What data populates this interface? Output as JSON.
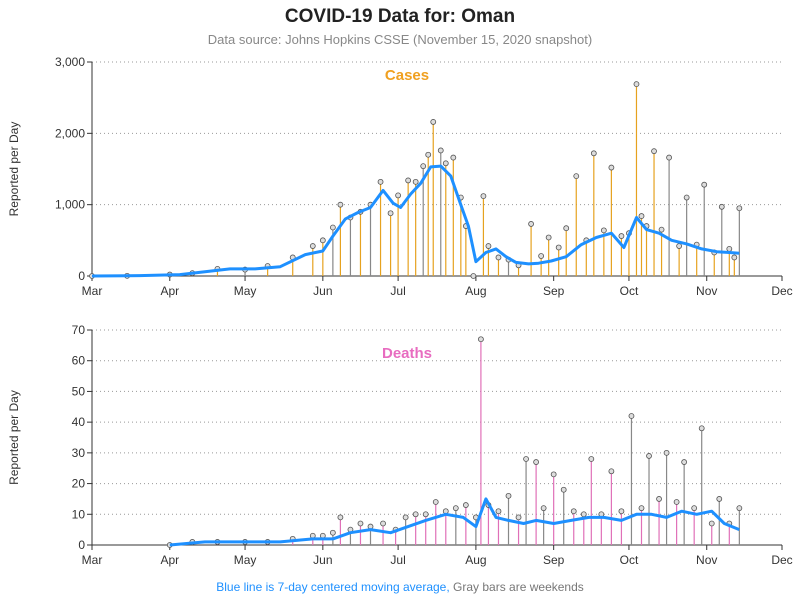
{
  "page": {
    "title": "COVID-19 Data for: Oman",
    "subtitle": "Data source: Johns Hopkins CSSE (November 15, 2020 snapshot)",
    "footer_blue": "Blue line is 7-day centered moving average,",
    "footer_gray": "Gray bars are weekends"
  },
  "colors": {
    "cases_bar": "#e6a21f",
    "deaths_bar": "#e070b8",
    "weekend_bar": "#888888",
    "moving_avg": "#1e90ff",
    "cases_title": "#f0a020",
    "deaths_title": "#e86cc0"
  },
  "chart_data": [
    {
      "type": "bar",
      "title": "Cases",
      "ylabel": "Reported per Day",
      "xlabel": "",
      "ylim": [
        0,
        3000
      ],
      "yticks": [
        "0",
        "1,000",
        "2,000",
        "3,000"
      ],
      "yticks_values": [
        0,
        1000,
        2000,
        3000
      ],
      "xticks": [
        "Mar",
        "Apr",
        "May",
        "Jun",
        "Jul",
        "Aug",
        "Sep",
        "Oct",
        "Nov",
        "Dec"
      ],
      "grid": "horizontal dotted",
      "series": [
        {
          "name": "Daily cases",
          "points": [
            [
              "2020-03-01",
              0
            ],
            [
              "2020-03-15",
              2
            ],
            [
              "2020-04-01",
              20
            ],
            [
              "2020-04-10",
              40
            ],
            [
              "2020-04-20",
              100
            ],
            [
              "2020-05-01",
              90
            ],
            [
              "2020-05-10",
              140
            ],
            [
              "2020-05-20",
              260
            ],
            [
              "2020-05-28",
              420
            ],
            [
              "2020-06-01",
              500
            ],
            [
              "2020-06-05",
              680
            ],
            [
              "2020-06-08",
              1000
            ],
            [
              "2020-06-12",
              820
            ],
            [
              "2020-06-16",
              900
            ],
            [
              "2020-06-20",
              1000
            ],
            [
              "2020-06-24",
              1320
            ],
            [
              "2020-06-28",
              880
            ],
            [
              "2020-07-01",
              1130
            ],
            [
              "2020-07-05",
              1340
            ],
            [
              "2020-07-08",
              1320
            ],
            [
              "2020-07-11",
              1540
            ],
            [
              "2020-07-13",
              1700
            ],
            [
              "2020-07-15",
              2160
            ],
            [
              "2020-07-18",
              1760
            ],
            [
              "2020-07-20",
              1580
            ],
            [
              "2020-07-23",
              1660
            ],
            [
              "2020-07-26",
              1100
            ],
            [
              "2020-07-28",
              700
            ],
            [
              "2020-07-31",
              0
            ],
            [
              "2020-08-04",
              1120
            ],
            [
              "2020-08-06",
              420
            ],
            [
              "2020-08-10",
              260
            ],
            [
              "2020-08-14",
              230
            ],
            [
              "2020-08-18",
              150
            ],
            [
              "2020-08-23",
              730
            ],
            [
              "2020-08-27",
              280
            ],
            [
              "2020-08-30",
              540
            ],
            [
              "2020-09-03",
              400
            ],
            [
              "2020-09-06",
              670
            ],
            [
              "2020-09-10",
              1400
            ],
            [
              "2020-09-14",
              500
            ],
            [
              "2020-09-17",
              1720
            ],
            [
              "2020-09-21",
              640
            ],
            [
              "2020-09-24",
              1520
            ],
            [
              "2020-09-28",
              560
            ],
            [
              "2020-10-01",
              600
            ],
            [
              "2020-10-04",
              2690
            ],
            [
              "2020-10-06",
              840
            ],
            [
              "2020-10-08",
              700
            ],
            [
              "2020-10-11",
              1750
            ],
            [
              "2020-10-14",
              650
            ],
            [
              "2020-10-17",
              1660
            ],
            [
              "2020-10-21",
              420
            ],
            [
              "2020-10-24",
              1100
            ],
            [
              "2020-10-28",
              440
            ],
            [
              "2020-10-31",
              1280
            ],
            [
              "2020-11-04",
              330
            ],
            [
              "2020-11-07",
              970
            ],
            [
              "2020-11-10",
              380
            ],
            [
              "2020-11-12",
              260
            ],
            [
              "2020-11-14",
              950
            ]
          ]
        },
        {
          "name": "7-day moving average",
          "points": [
            [
              "2020-03-01",
              0
            ],
            [
              "2020-03-20",
              5
            ],
            [
              "2020-04-05",
              20
            ],
            [
              "2020-04-15",
              60
            ],
            [
              "2020-04-25",
              100
            ],
            [
              "2020-05-05",
              100
            ],
            [
              "2020-05-15",
              130
            ],
            [
              "2020-05-25",
              300
            ],
            [
              "2020-06-01",
              350
            ],
            [
              "2020-06-05",
              560
            ],
            [
              "2020-06-10",
              800
            ],
            [
              "2020-06-15",
              890
            ],
            [
              "2020-06-20",
              960
            ],
            [
              "2020-06-25",
              1200
            ],
            [
              "2020-06-29",
              1020
            ],
            [
              "2020-07-02",
              960
            ],
            [
              "2020-07-06",
              1150
            ],
            [
              "2020-07-10",
              1300
            ],
            [
              "2020-07-14",
              1530
            ],
            [
              "2020-07-18",
              1540
            ],
            [
              "2020-07-22",
              1400
            ],
            [
              "2020-07-26",
              1000
            ],
            [
              "2020-07-29",
              700
            ],
            [
              "2020-08-01",
              200
            ],
            [
              "2020-08-05",
              330
            ],
            [
              "2020-08-09",
              380
            ],
            [
              "2020-08-13",
              270
            ],
            [
              "2020-08-17",
              190
            ],
            [
              "2020-08-22",
              170
            ],
            [
              "2020-08-26",
              180
            ],
            [
              "2020-08-31",
              210
            ],
            [
              "2020-09-06",
              270
            ],
            [
              "2020-09-12",
              440
            ],
            [
              "2020-09-18",
              540
            ],
            [
              "2020-09-24",
              600
            ],
            [
              "2020-09-29",
              400
            ],
            [
              "2020-10-04",
              820
            ],
            [
              "2020-10-08",
              650
            ],
            [
              "2020-10-13",
              600
            ],
            [
              "2020-10-18",
              500
            ],
            [
              "2020-10-24",
              450
            ],
            [
              "2020-10-30",
              380
            ],
            [
              "2020-11-05",
              340
            ],
            [
              "2020-11-10",
              330
            ],
            [
              "2020-11-14",
              320
            ]
          ]
        }
      ]
    },
    {
      "type": "bar",
      "title": "Deaths",
      "ylabel": "Reported per Day",
      "xlabel": "",
      "ylim": [
        0,
        70
      ],
      "yticks": [
        "0",
        "10",
        "20",
        "30",
        "40",
        "50",
        "60",
        "70"
      ],
      "yticks_values": [
        0,
        10,
        20,
        30,
        40,
        50,
        60,
        70
      ],
      "xticks": [
        "Mar",
        "Apr",
        "May",
        "Jun",
        "Jul",
        "Aug",
        "Sep",
        "Oct",
        "Nov",
        "Dec"
      ],
      "grid": "horizontal dotted",
      "series": [
        {
          "name": "Daily deaths",
          "points": [
            [
              "2020-04-01",
              0
            ],
            [
              "2020-04-10",
              1
            ],
            [
              "2020-04-20",
              1
            ],
            [
              "2020-05-01",
              1
            ],
            [
              "2020-05-10",
              1
            ],
            [
              "2020-05-20",
              2
            ],
            [
              "2020-05-28",
              3
            ],
            [
              "2020-06-01",
              3
            ],
            [
              "2020-06-05",
              4
            ],
            [
              "2020-06-08",
              9
            ],
            [
              "2020-06-12",
              5
            ],
            [
              "2020-06-16",
              7
            ],
            [
              "2020-06-20",
              6
            ],
            [
              "2020-06-25",
              7
            ],
            [
              "2020-06-30",
              5
            ],
            [
              "2020-07-04",
              9
            ],
            [
              "2020-07-08",
              10
            ],
            [
              "2020-07-12",
              10
            ],
            [
              "2020-07-16",
              14
            ],
            [
              "2020-07-20",
              11
            ],
            [
              "2020-07-24",
              12
            ],
            [
              "2020-07-28",
              13
            ],
            [
              "2020-08-01",
              9
            ],
            [
              "2020-08-03",
              67
            ],
            [
              "2020-08-06",
              13
            ],
            [
              "2020-08-10",
              11
            ],
            [
              "2020-08-14",
              16
            ],
            [
              "2020-08-18",
              9
            ],
            [
              "2020-08-21",
              28
            ],
            [
              "2020-08-25",
              27
            ],
            [
              "2020-08-28",
              12
            ],
            [
              "2020-09-01",
              23
            ],
            [
              "2020-09-05",
              18
            ],
            [
              "2020-09-09",
              11
            ],
            [
              "2020-09-13",
              10
            ],
            [
              "2020-09-16",
              28
            ],
            [
              "2020-09-20",
              10
            ],
            [
              "2020-09-24",
              24
            ],
            [
              "2020-09-28",
              11
            ],
            [
              "2020-10-02",
              42
            ],
            [
              "2020-10-06",
              12
            ],
            [
              "2020-10-09",
              29
            ],
            [
              "2020-10-13",
              15
            ],
            [
              "2020-10-16",
              30
            ],
            [
              "2020-10-20",
              14
            ],
            [
              "2020-10-23",
              27
            ],
            [
              "2020-10-27",
              12
            ],
            [
              "2020-10-30",
              38
            ],
            [
              "2020-11-03",
              7
            ],
            [
              "2020-11-06",
              15
            ],
            [
              "2020-11-10",
              7
            ],
            [
              "2020-11-14",
              12
            ]
          ]
        },
        {
          "name": "7-day moving average",
          "points": [
            [
              "2020-04-01",
              0
            ],
            [
              "2020-04-15",
              1
            ],
            [
              "2020-05-01",
              1
            ],
            [
              "2020-05-15",
              1
            ],
            [
              "2020-05-28",
              2
            ],
            [
              "2020-06-05",
              2
            ],
            [
              "2020-06-12",
              4
            ],
            [
              "2020-06-20",
              5
            ],
            [
              "2020-06-28",
              4
            ],
            [
              "2020-07-05",
              6
            ],
            [
              "2020-07-12",
              8
            ],
            [
              "2020-07-20",
              10
            ],
            [
              "2020-07-27",
              9
            ],
            [
              "2020-08-01",
              6
            ],
            [
              "2020-08-05",
              15
            ],
            [
              "2020-08-09",
              9
            ],
            [
              "2020-08-14",
              8
            ],
            [
              "2020-08-20",
              7
            ],
            [
              "2020-08-25",
              8
            ],
            [
              "2020-09-01",
              7
            ],
            [
              "2020-09-08",
              8
            ],
            [
              "2020-09-15",
              9
            ],
            [
              "2020-09-21",
              9
            ],
            [
              "2020-09-28",
              8
            ],
            [
              "2020-10-04",
              10
            ],
            [
              "2020-10-10",
              10
            ],
            [
              "2020-10-16",
              9
            ],
            [
              "2020-10-22",
              11
            ],
            [
              "2020-10-28",
              10
            ],
            [
              "2020-11-03",
              11
            ],
            [
              "2020-11-08",
              7
            ],
            [
              "2020-11-14",
              5
            ]
          ]
        }
      ]
    }
  ]
}
